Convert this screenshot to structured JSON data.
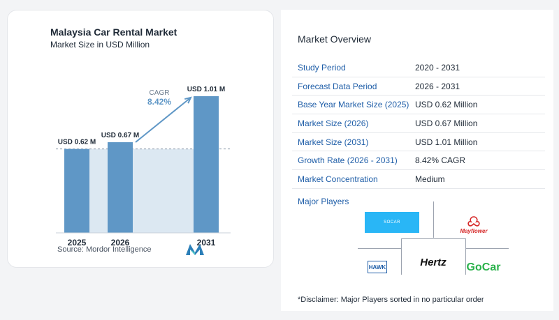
{
  "chart": {
    "title": "Malaysia Car Rental Market",
    "subtitle": "Market Size in USD Million",
    "cagr_label": "CAGR",
    "cagr_value": "8.42%",
    "source": "Source:  Mordor Intelligence"
  },
  "chart_data": {
    "type": "bar",
    "title": "Malaysia Car Rental Market",
    "subtitle": "Market Size in USD Million",
    "categories": [
      "2025",
      "2026",
      "2031"
    ],
    "values": [
      0.62,
      0.67,
      1.01
    ],
    "data_labels": [
      "USD 0.62 M",
      "USD 0.67 M",
      "USD 1.01 M"
    ],
    "unit": "USD Million",
    "annotation": {
      "label": "CAGR",
      "value": "8.42%"
    },
    "reference_line": 0.62,
    "ylim": [
      0,
      1.01
    ],
    "grid": false,
    "legend": "none",
    "colors": {
      "bar": "#5f97c6",
      "shade": "#dce8f2",
      "arrow": "#5f97c6"
    }
  },
  "overview": {
    "title": "Market Overview",
    "rows": [
      {
        "label": "Study Period",
        "value": "2020 - 2031"
      },
      {
        "label": "Forecast Data Period",
        "value": "2026 - 2031"
      },
      {
        "label": "Base Year Market Size (2025)",
        "value": "USD 0.62 Million"
      },
      {
        "label": "Market Size (2026)",
        "value": "USD 0.67 Million"
      },
      {
        "label": "Market Size (2031)",
        "value": "USD 1.01 Million"
      },
      {
        "label": "Growth Rate (2026 - 2031)",
        "value": "8.42% CAGR"
      },
      {
        "label": "Market Concentration",
        "value": "Medium"
      }
    ],
    "players_title": "Major Players",
    "players": [
      "SOCAR",
      "Mayflower",
      "HAWK",
      "Hertz",
      "GoCar"
    ],
    "disclaimer": "*Disclaimer: Major Players sorted in no particular order"
  },
  "colors": {
    "label_blue": "#1f5ea8",
    "text_dark": "#1f2a37"
  }
}
